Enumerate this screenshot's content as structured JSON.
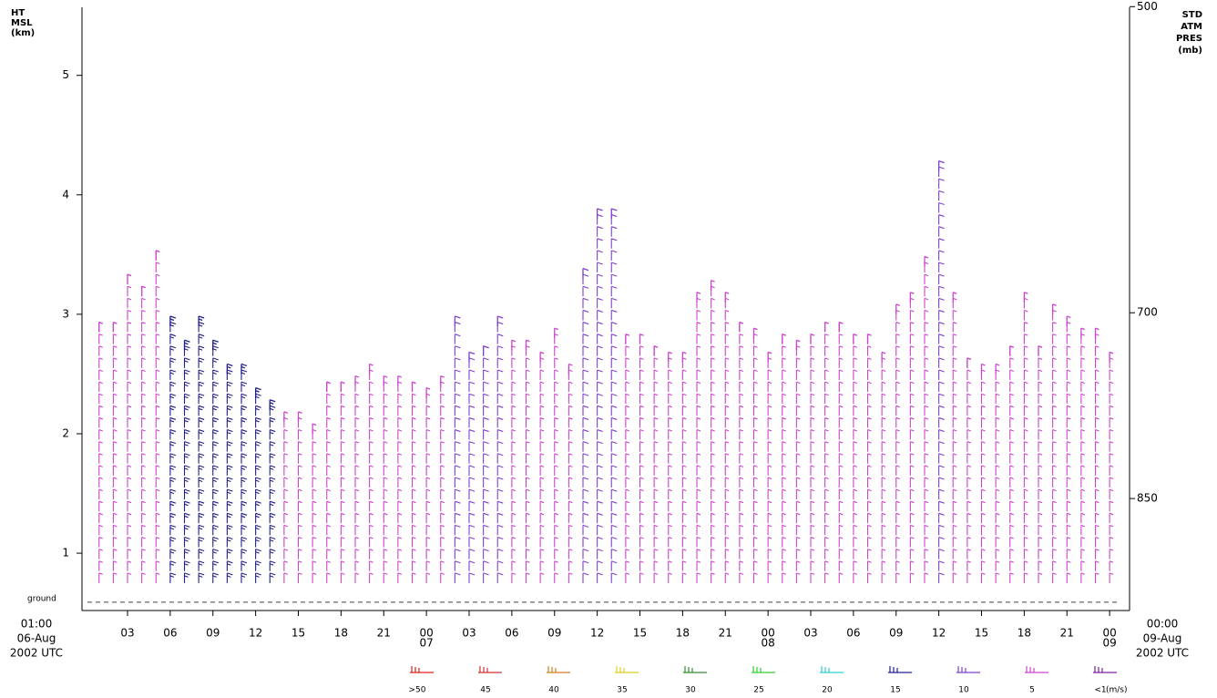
{
  "chart_data": {
    "type": "wind_barbs",
    "y_label_lines": [
      "HT",
      "MSL",
      "(km)"
    ],
    "y2_label_lines": [
      "STD",
      "ATM",
      "PRES",
      "(mb)"
    ],
    "start_lines": [
      "01:00",
      "06-Aug",
      "2002 UTC"
    ],
    "end_lines": [
      "00:00",
      "09-Aug",
      "2002 UTC"
    ],
    "ground_label": "ground",
    "ground_height": 0.59,
    "ylim": [
      0.52,
      5.57
    ],
    "yticks": [
      1,
      2,
      3,
      4,
      5
    ],
    "y2ticks": [
      500,
      700,
      850
    ],
    "xlim": [
      -0.2,
      73.4
    ],
    "xticks": [
      {
        "value": 3,
        "label": "03"
      },
      {
        "value": 6,
        "label": "06"
      },
      {
        "value": 9,
        "label": "09"
      },
      {
        "value": 12,
        "label": "12"
      },
      {
        "value": 15,
        "label": "15"
      },
      {
        "value": 18,
        "label": "18"
      },
      {
        "value": 21,
        "label": "21"
      },
      {
        "value": 24,
        "label": "00",
        "date": "07"
      },
      {
        "value": 27,
        "label": "03"
      },
      {
        "value": 30,
        "label": "06"
      },
      {
        "value": 33,
        "label": "09"
      },
      {
        "value": 36,
        "label": "12"
      },
      {
        "value": 39,
        "label": "15"
      },
      {
        "value": 42,
        "label": "18"
      },
      {
        "value": 45,
        "label": "21"
      },
      {
        "value": 48,
        "label": "00",
        "date": "08"
      },
      {
        "value": 51,
        "label": "03"
      },
      {
        "value": 54,
        "label": "06"
      },
      {
        "value": 57,
        "label": "09"
      },
      {
        "value": 60,
        "label": "12"
      },
      {
        "value": 63,
        "label": "15"
      },
      {
        "value": 66,
        "label": "18"
      },
      {
        "value": 69,
        "label": "21"
      },
      {
        "value": 72,
        "label": "00",
        "date": "09"
      }
    ],
    "x": [
      1,
      2,
      3,
      4,
      5,
      6,
      7,
      8,
      9,
      10,
      11,
      12,
      13,
      14,
      15,
      16,
      17,
      18,
      19,
      20,
      21,
      22,
      23,
      24,
      25,
      26,
      27,
      28,
      29,
      30,
      31,
      32,
      33,
      34,
      35,
      36,
      37,
      38,
      39,
      40,
      41,
      42,
      43,
      44,
      45,
      46,
      47,
      48,
      49,
      50,
      51,
      52,
      53,
      54,
      55,
      56,
      57,
      58,
      59,
      60,
      61,
      62,
      63,
      64,
      65,
      66,
      67,
      68,
      69,
      70,
      71,
      72
    ],
    "tops": [
      2.85,
      2.85,
      3.25,
      3.15,
      3.45,
      2.9,
      2.7,
      2.9,
      2.7,
      2.5,
      2.5,
      2.3,
      2.2,
      2.1,
      2.1,
      2.0,
      2.35,
      2.35,
      2.4,
      2.5,
      2.4,
      2.4,
      2.35,
      2.3,
      2.4,
      2.9,
      2.6,
      2.65,
      2.9,
      2.7,
      2.7,
      2.6,
      2.8,
      2.5,
      3.3,
      3.8,
      3.8,
      2.75,
      2.75,
      2.65,
      2.6,
      2.6,
      3.1,
      3.2,
      3.1,
      2.85,
      2.8,
      2.6,
      2.75,
      2.7,
      2.75,
      2.85,
      2.85,
      2.75,
      2.75,
      2.6,
      3.0,
      3.1,
      3.4,
      4.2,
      3.1,
      2.55,
      2.5,
      2.5,
      2.65,
      3.1,
      2.65,
      3.0,
      2.9,
      2.8,
      2.8,
      2.6
    ],
    "speeds": [
      5,
      5,
      5,
      5,
      5,
      15,
      15,
      15,
      15,
      15,
      15,
      15,
      15,
      5,
      5,
      5,
      5,
      5,
      5,
      5,
      5,
      5,
      5,
      5,
      5,
      10,
      10,
      10,
      10,
      5,
      5,
      5,
      5,
      5,
      10,
      10,
      10,
      5,
      5,
      5,
      5,
      5,
      5,
      5,
      5,
      5,
      5,
      5,
      5,
      5,
      5,
      5,
      5,
      5,
      5,
      5,
      5,
      5,
      5,
      10,
      5,
      5,
      5,
      5,
      5,
      5,
      5,
      5,
      5,
      5,
      5,
      5
    ],
    "legend": [
      {
        "label": ">50",
        "color": "#e02020"
      },
      {
        "speed": 45,
        "color": "#cc3333"
      },
      {
        "speed": 40,
        "color": "#d08020"
      },
      {
        "speed": 35,
        "color": "#e0d020"
      },
      {
        "speed": 30,
        "color": "#309030"
      },
      {
        "speed": 25,
        "color": "#30d030"
      },
      {
        "speed": 20,
        "color": "#30d0d0"
      },
      {
        "speed": 15,
        "color": "#20208a"
      },
      {
        "speed": 10,
        "color": "#8040d0"
      },
      {
        "speed": 5,
        "color": "#cc44cc"
      },
      {
        "label": "<1",
        "color": "#8020a0"
      }
    ],
    "legend_unit": "(m/s)"
  }
}
